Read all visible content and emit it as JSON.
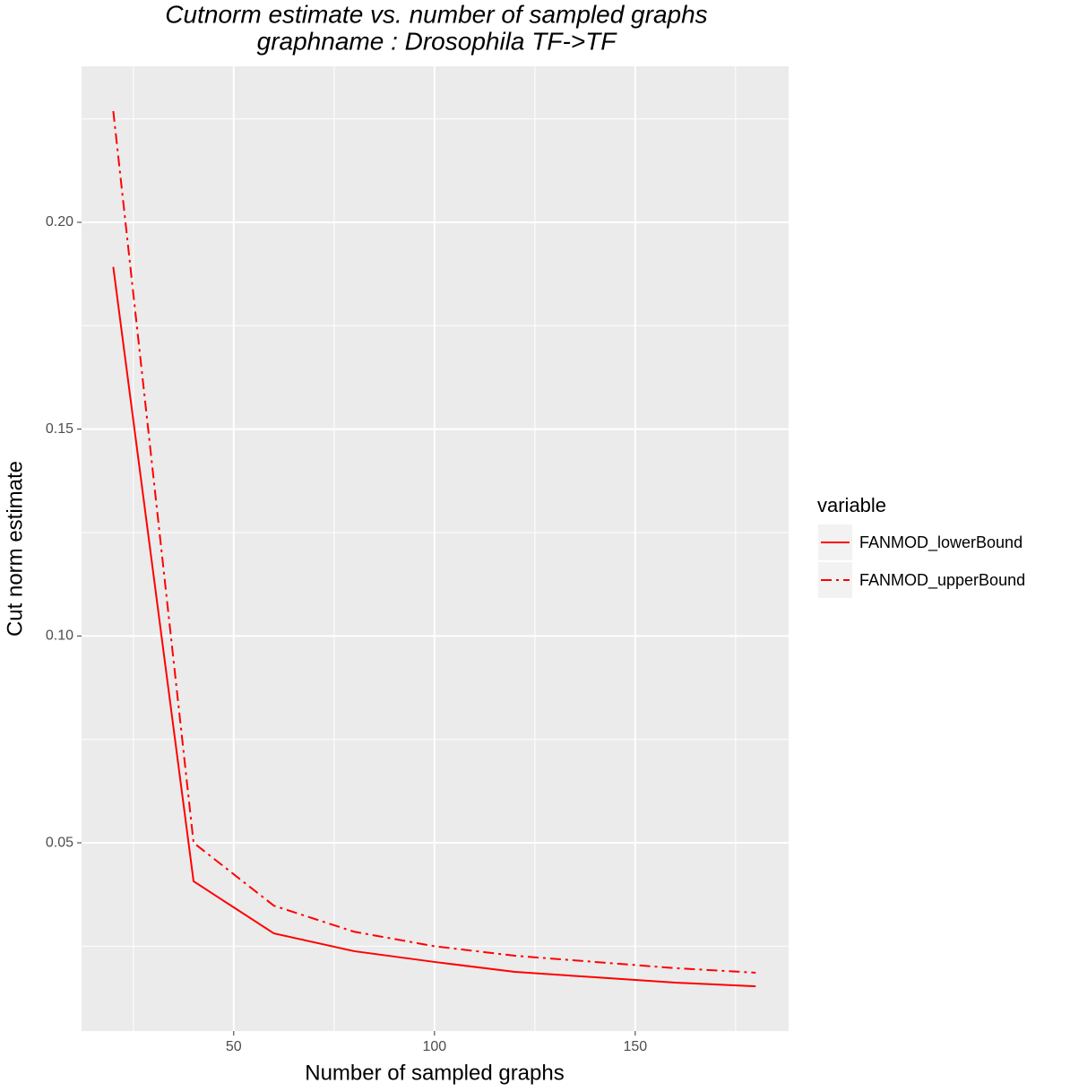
{
  "chart_data": {
    "type": "line",
    "title": "Cutnorm estimate vs. number of sampled graphs",
    "subtitle": "graphname : Drosophila TF->TF",
    "x_label": "Number of sampled graphs",
    "y_label": "Cut norm estimate",
    "x": [
      20,
      40,
      60,
      80,
      100,
      120,
      140,
      160,
      180
    ],
    "series": [
      {
        "name": "FANMOD_lowerBound",
        "color": "#ff0000",
        "dash": "solid",
        "values": [
          0.1892,
          0.0407,
          0.0281,
          0.0238,
          0.0212,
          0.0188,
          0.0175,
          0.0162,
          0.0153
        ]
      },
      {
        "name": "FANMOD_upperBound",
        "color": "#ff0000",
        "dash": "dashdot",
        "values": [
          0.2269,
          0.05,
          0.0348,
          0.0285,
          0.025,
          0.0227,
          0.0212,
          0.0197,
          0.0186
        ]
      }
    ],
    "legend_title": "variable",
    "legend": "right",
    "xlim": [
      12.1,
      188.2
    ],
    "ylim": [
      0.0045,
      0.2377
    ],
    "xticks": [
      50,
      100,
      150
    ],
    "yticks": [
      0.05,
      {
        "value": 0.1,
        "label": "0.10"
      },
      0.15,
      {
        "value": 0.2,
        "label": "0.20"
      }
    ],
    "x_minor_gridlines": [
      25,
      75,
      125,
      175
    ],
    "y_minor_gridlines": [
      0.025,
      0.075,
      0.125,
      0.175,
      0.225
    ],
    "grid": true
  }
}
